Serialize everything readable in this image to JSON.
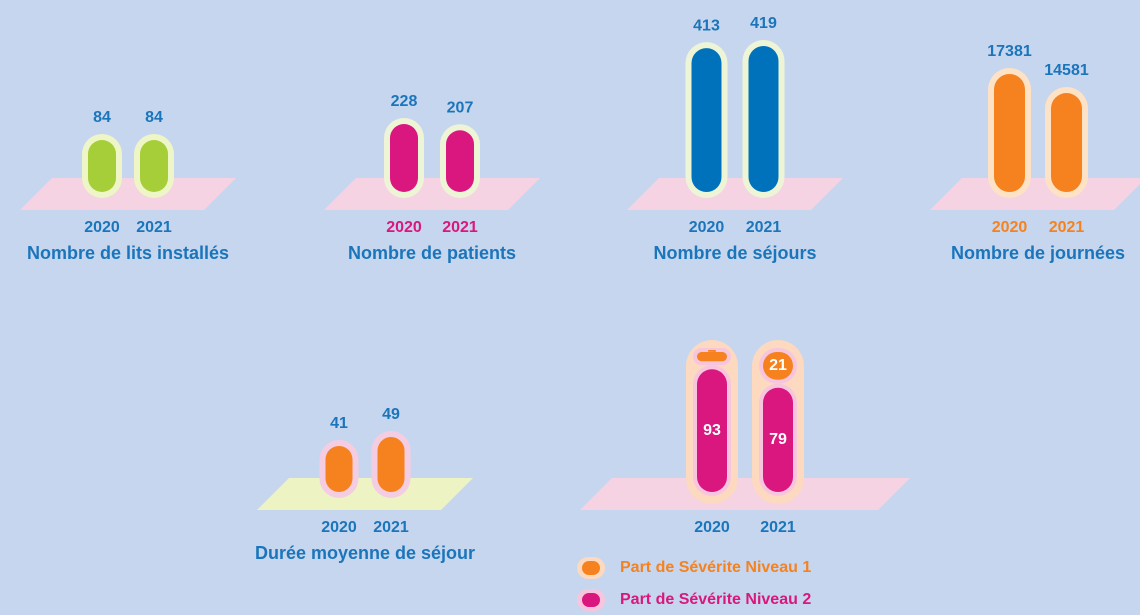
{
  "chart_data": [
    {
      "type": "bar",
      "title": "Nombre de lits installés",
      "categories": [
        "2020",
        "2021"
      ],
      "values": [
        84,
        84
      ],
      "color": "#a6ce39"
    },
    {
      "type": "bar",
      "title": "Nombre de patients",
      "categories": [
        "2020",
        "2021"
      ],
      "values": [
        228,
        207
      ],
      "color": "#d9177e"
    },
    {
      "type": "bar",
      "title": "Nombre de séjours",
      "categories": [
        "2020",
        "2021"
      ],
      "values": [
        413,
        419
      ],
      "color": "#0072bc"
    },
    {
      "type": "bar",
      "title": "Nombre de journées",
      "categories": [
        "2020",
        "2021"
      ],
      "values": [
        17381,
        14581
      ],
      "color": "#f5821f"
    },
    {
      "type": "bar",
      "title": "Durée moyenne de séjour",
      "categories": [
        "2020",
        "2021"
      ],
      "values": [
        41,
        49
      ],
      "color": "#f5821f"
    },
    {
      "type": "stacked_bar",
      "categories": [
        "2020",
        "2021"
      ],
      "series": [
        {
          "name": "Part de Sévérite Niveau 1",
          "color": "#f5821f",
          "values": [
            7,
            21
          ]
        },
        {
          "name": "Part de Sévérite Niveau 2",
          "color": "#d9177e",
          "values": [
            93,
            79
          ]
        }
      ]
    }
  ]
}
